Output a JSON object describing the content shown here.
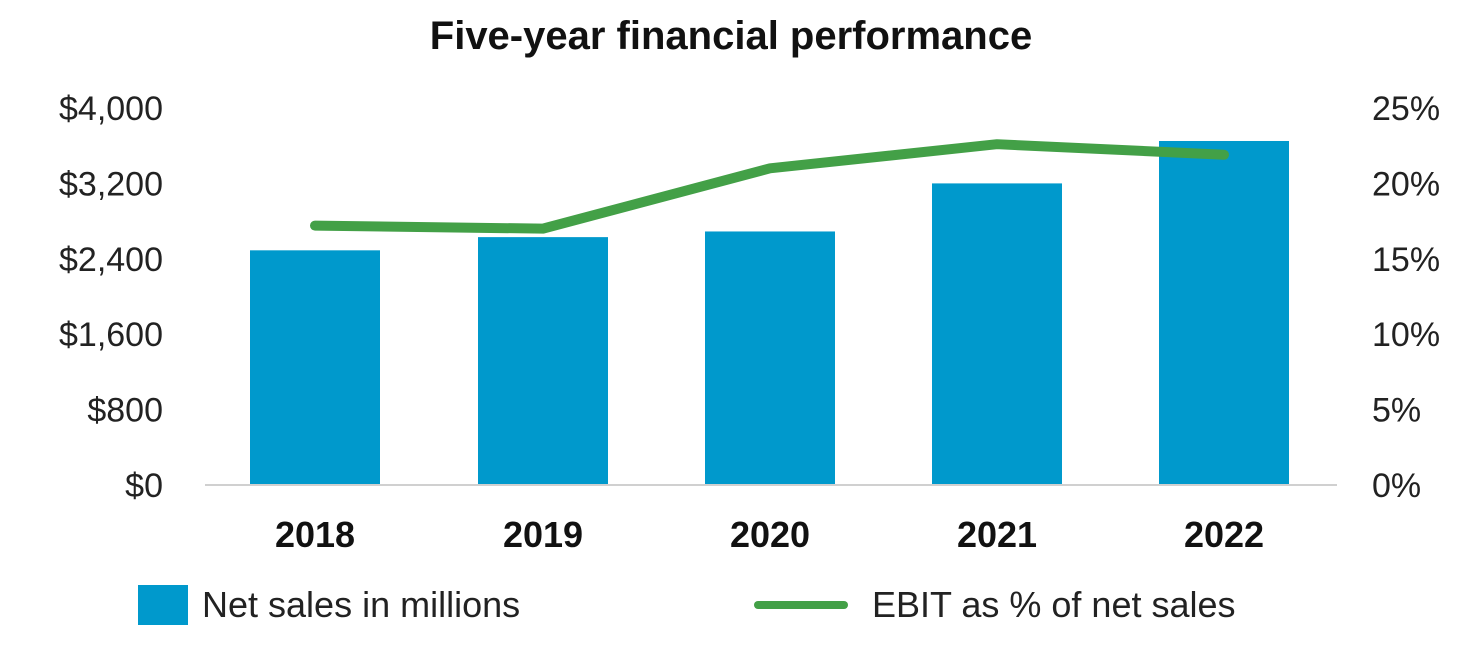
{
  "chart_data": {
    "type": "bar",
    "title": "Five-year financial performance",
    "categories": [
      "2018",
      "2019",
      "2020",
      "2021",
      "2022"
    ],
    "y_left": {
      "ylim": [
        0,
        4000
      ],
      "ticks": [
        0,
        800,
        1600,
        2400,
        3200,
        4000
      ],
      "tick_labels": [
        "$0",
        "$800",
        "$1,600",
        "$2,400",
        "$3,200",
        "$4,000"
      ]
    },
    "y_right": {
      "ylim": [
        0,
        25
      ],
      "ticks": [
        0,
        5,
        10,
        15,
        20,
        25
      ],
      "tick_labels": [
        "0%",
        "5%",
        "10%",
        "15%",
        "20%",
        "25%"
      ]
    },
    "series": [
      {
        "name": "Net sales in millions",
        "type": "bar",
        "axis": "left",
        "color": "#0099cc",
        "values": [
          2490,
          2630,
          2690,
          3200,
          3650
        ]
      },
      {
        "name": "EBIT as % of net sales",
        "type": "line",
        "axis": "right",
        "color": "#43a047",
        "values": [
          17.2,
          17.0,
          21.0,
          22.6,
          21.9
        ]
      }
    ],
    "grid": false,
    "legend_position": "bottom"
  }
}
